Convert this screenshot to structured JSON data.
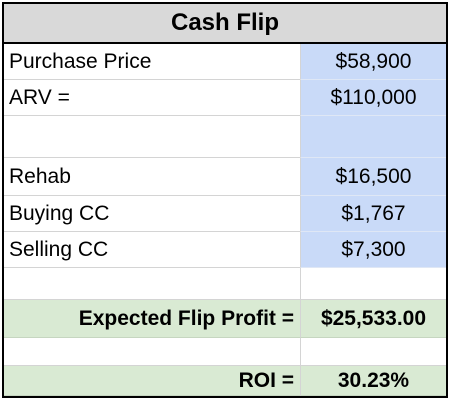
{
  "sheet": {
    "title": "Cash Flip",
    "rows": [
      {
        "label": "Purchase Price",
        "value": "$58,900"
      },
      {
        "label": "ARV =",
        "value": "$110,000"
      },
      {
        "label": "",
        "value": ""
      },
      {
        "label": "Rehab",
        "value": "$16,500"
      },
      {
        "label": "Buying CC",
        "value": "$1,767"
      },
      {
        "label": "Selling CC",
        "value": "$7,300"
      },
      {
        "label": "",
        "value": ""
      },
      {
        "label": "Expected Flip Profit =",
        "value": "$25,533.00"
      },
      {
        "label": "",
        "value": ""
      },
      {
        "label": "ROI =",
        "value": "30.23%"
      }
    ]
  },
  "colors": {
    "input_cell": "#c9daf8",
    "summary_cell": "#d9ead3",
    "header_cell": "#d9d9d9"
  }
}
